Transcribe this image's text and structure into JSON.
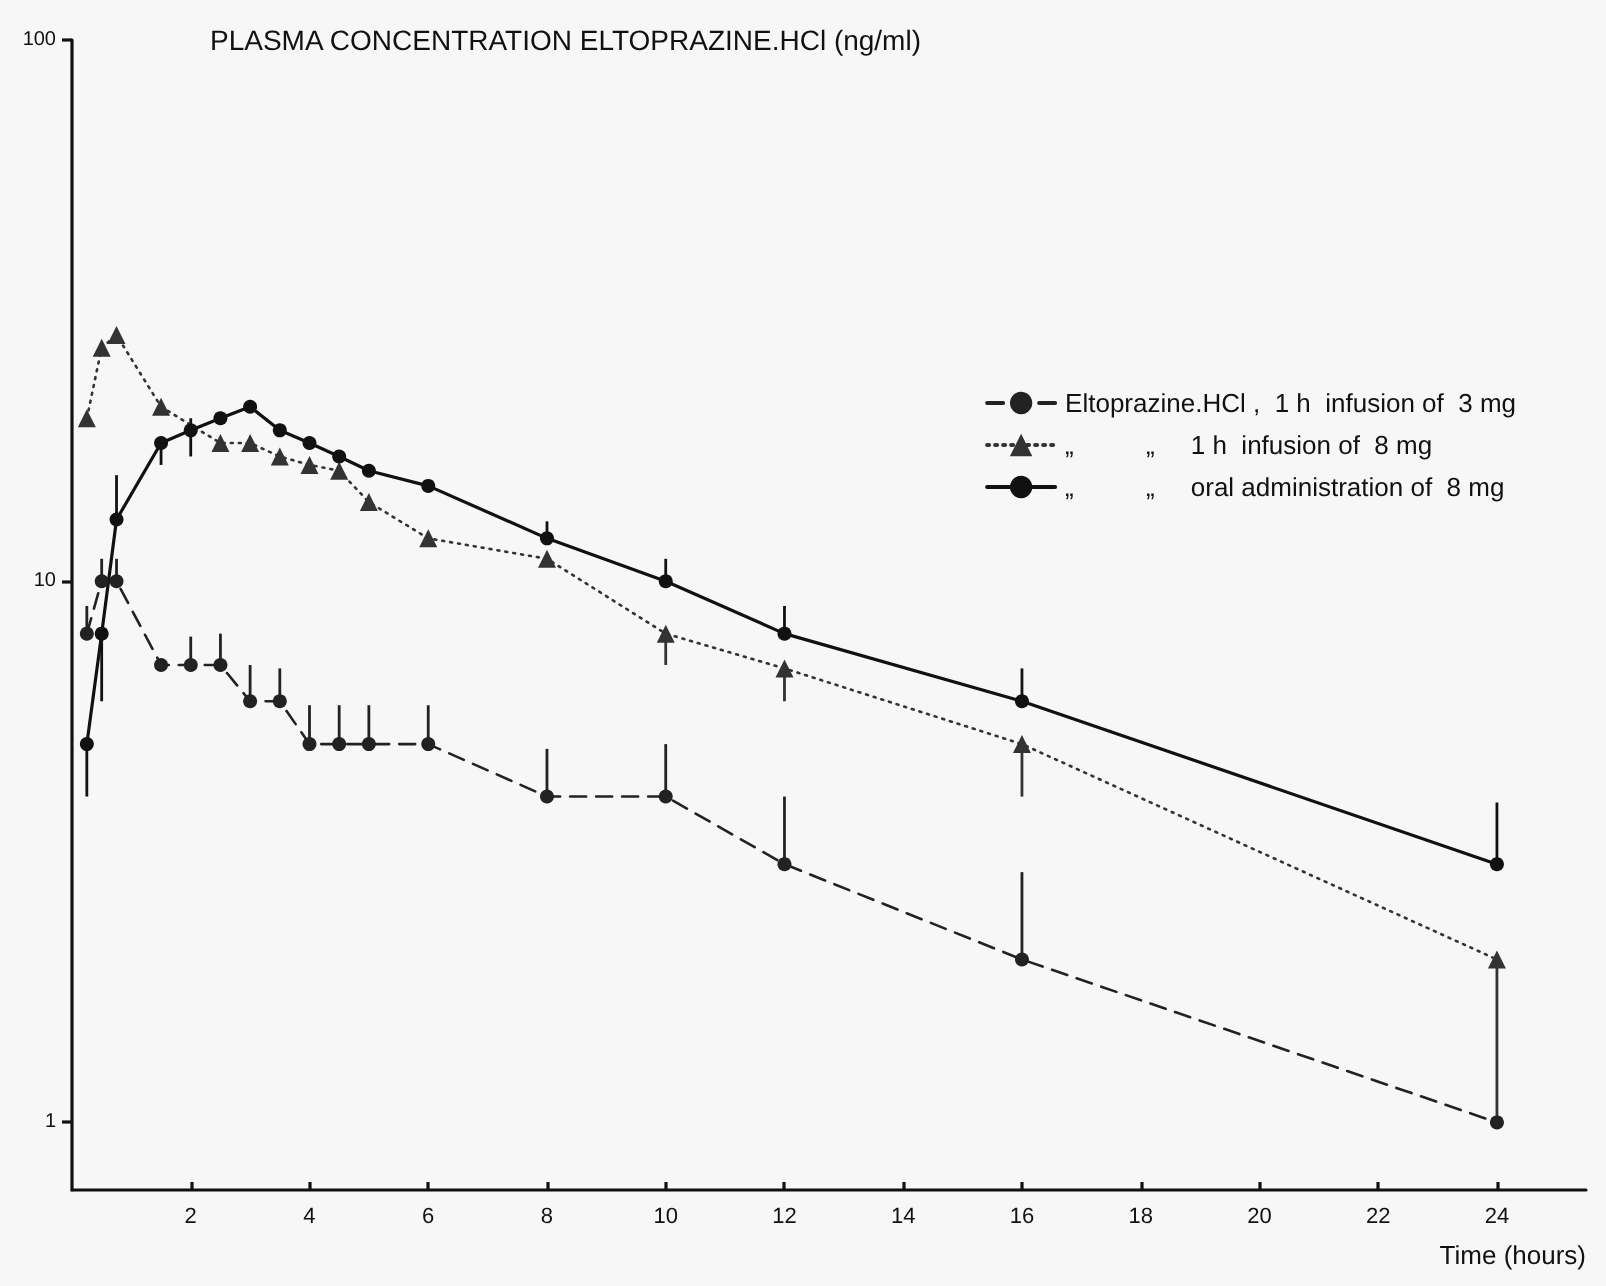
{
  "chart_data": {
    "type": "line",
    "title": "PLASMA CONCENTRATION ELTOPRAZINE.HCl (ng/ml)",
    "xlabel": "Time (hours)",
    "xlim": [
      0,
      25.5
    ],
    "xticks": [
      2,
      4,
      6,
      8,
      10,
      12,
      14,
      16,
      18,
      20,
      22,
      24
    ],
    "ylim": [
      0.75,
      100
    ],
    "yticks": [
      1,
      10,
      100
    ],
    "log": "y",
    "grid": false,
    "legend": "top right",
    "series": [
      {
        "name": "Eltoprazine.HCl ,  1 h  infusion of  3 mg",
        "color": "#222222",
        "marker": "circle",
        "line_style": "dashed",
        "x": [
          0.25,
          0.5,
          0.75,
          1.5,
          2,
          2.5,
          3,
          3.5,
          4,
          4.5,
          5,
          6,
          8,
          10,
          12,
          16,
          24
        ],
        "values": [
          8,
          10,
          10,
          7,
          7,
          7,
          6,
          6,
          5,
          5,
          5,
          5,
          4,
          4,
          3,
          2,
          1
        ],
        "errors": [
          [
            8,
            9
          ],
          [
            10,
            11
          ],
          [
            10,
            11
          ],
          null,
          [
            7,
            7.9
          ],
          [
            7,
            8
          ],
          [
            6,
            7
          ],
          [
            6,
            6.9
          ],
          [
            5,
            5.9
          ],
          [
            5,
            5.9
          ],
          [
            5,
            5.9
          ],
          [
            5,
            5.9
          ],
          [
            4,
            4.9
          ],
          [
            4,
            5
          ],
          [
            3,
            4
          ],
          [
            2,
            2.9
          ],
          null
        ]
      },
      {
        "name": "„          „     1 h  infusion of  8 mg",
        "color": "#333333",
        "marker": "triangle",
        "line_style": "dotted",
        "x": [
          0.25,
          0.5,
          0.75,
          1.5,
          2,
          2.5,
          3,
          3.5,
          4,
          4.5,
          5,
          6,
          8,
          10,
          12,
          16,
          24
        ],
        "values": [
          20,
          27,
          28.5,
          21,
          null,
          18,
          18,
          17,
          16.4,
          16,
          14,
          12,
          11,
          8,
          6.9,
          5,
          2
        ],
        "errors": [
          null,
          null,
          null,
          null,
          null,
          null,
          null,
          null,
          null,
          null,
          null,
          null,
          null,
          [
            7,
            8
          ],
          [
            6,
            6.9
          ],
          [
            4,
            5
          ],
          [
            1,
            2
          ]
        ]
      },
      {
        "name": "„          „     oral administration of  8 mg",
        "color": "#111111",
        "marker": "circle",
        "line_style": "solid",
        "x": [
          0.25,
          0.5,
          0.75,
          1.5,
          2,
          2.5,
          3,
          3.5,
          4,
          4.5,
          5,
          6,
          8,
          10,
          12,
          16,
          24
        ],
        "values": [
          5,
          8,
          13,
          18,
          19,
          20,
          21,
          19,
          18,
          17,
          16,
          15,
          12,
          10,
          8,
          6,
          3
        ],
        "errors": [
          [
            4,
            5
          ],
          [
            6,
            8
          ],
          [
            13,
            15.7
          ],
          [
            16.4,
            18
          ],
          [
            17,
            20
          ],
          null,
          null,
          null,
          null,
          null,
          null,
          null,
          [
            12,
            12.9
          ],
          [
            10,
            11
          ],
          [
            8,
            9
          ],
          [
            6,
            6.9
          ],
          [
            3,
            3.9
          ]
        ]
      }
    ]
  }
}
